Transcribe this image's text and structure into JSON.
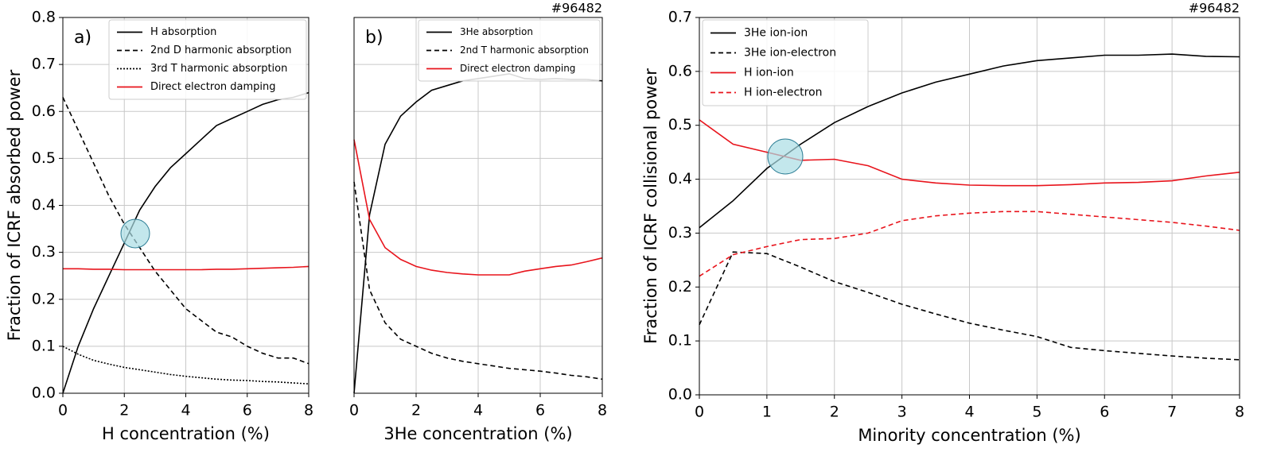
{
  "chart_data": [
    {
      "type": "line",
      "panel_label": "a)",
      "xlabel": "H concentration (%)",
      "ylabel": "Fraction of ICRF absorbed power",
      "xlim": [
        0,
        8
      ],
      "ylim": [
        0,
        0.8
      ],
      "xticks": [
        0,
        2,
        4,
        6,
        8
      ],
      "yticks": [
        {
          "value": 0,
          "label": "0.0"
        },
        0.1,
        0.2,
        0.3,
        0.4,
        0.5,
        0.6,
        0.7,
        0.8
      ],
      "grid": true,
      "legend": "upper right",
      "x": [
        0,
        0.5,
        1,
        1.5,
        2,
        2.5,
        3,
        3.5,
        4,
        4.5,
        5,
        5.5,
        6,
        6.5,
        7,
        7.5,
        8
      ],
      "series": [
        {
          "name": "H absorption",
          "color": "#000000",
          "dash": "solid",
          "values": [
            0,
            0.1,
            0.18,
            0.25,
            0.32,
            0.39,
            0.44,
            0.48,
            0.51,
            0.54,
            0.57,
            0.585,
            0.6,
            0.615,
            0.625,
            0.63,
            0.64
          ]
        },
        {
          "name": "2nd D harmonic absorption",
          "color": "#000000",
          "dash": "dashed",
          "values": [
            0.63,
            0.56,
            0.49,
            0.42,
            0.36,
            0.31,
            0.26,
            0.22,
            0.18,
            0.155,
            0.13,
            0.12,
            0.1,
            0.085,
            0.075,
            0.075,
            0.063
          ]
        },
        {
          "name": "3rd T harmonic absorption",
          "color": "#000000",
          "dash": "dotted",
          "values": [
            0.1,
            0.083,
            0.07,
            0.062,
            0.055,
            0.05,
            0.045,
            0.04,
            0.036,
            0.033,
            0.03,
            0.028,
            0.027,
            0.025,
            0.024,
            0.022,
            0.02
          ]
        },
        {
          "name": "Direct electron damping",
          "color": "#e8141c",
          "dash": "solid",
          "values": [
            0.265,
            0.265,
            0.264,
            0.264,
            0.263,
            0.263,
            0.263,
            0.263,
            0.263,
            0.263,
            0.264,
            0.264,
            0.265,
            0.266,
            0.267,
            0.268,
            0.27
          ]
        }
      ]
    },
    {
      "type": "line",
      "panel_label": "b)",
      "shot_label": "#96482",
      "xlabel": "3He concentration (%)",
      "xlim": [
        0,
        8
      ],
      "ylim": [
        0,
        0.8
      ],
      "xticks": [
        0,
        2,
        4,
        6,
        8
      ],
      "yticks": [
        0.1,
        0.2,
        0.3,
        0.4,
        0.5,
        0.6,
        0.7
      ],
      "ytick_labels": false,
      "grid": true,
      "legend": "upper right",
      "x": [
        0,
        0.5,
        1,
        1.5,
        2,
        2.5,
        3,
        3.5,
        4,
        4.5,
        5,
        5.5,
        6,
        6.5,
        7,
        7.5,
        8
      ],
      "series": [
        {
          "name": "3He absorption",
          "color": "#000000",
          "dash": "solid",
          "values": [
            0,
            0.38,
            0.53,
            0.59,
            0.62,
            0.645,
            0.655,
            0.665,
            0.67,
            0.675,
            0.68,
            0.67,
            0.668,
            0.67,
            0.668,
            0.668,
            0.665
          ]
        },
        {
          "name": "2nd T harmonic absorption",
          "color": "#000000",
          "dash": "dashed",
          "values": [
            0.45,
            0.22,
            0.15,
            0.115,
            0.1,
            0.085,
            0.075,
            0.068,
            0.063,
            0.058,
            0.053,
            0.05,
            0.047,
            0.043,
            0.038,
            0.035,
            0.03
          ]
        },
        {
          "name": "Direct electron damping",
          "color": "#e8141c",
          "dash": "solid",
          "values": [
            0.54,
            0.37,
            0.31,
            0.285,
            0.27,
            0.262,
            0.257,
            0.254,
            0.252,
            0.252,
            0.252,
            0.26,
            0.265,
            0.27,
            0.273,
            0.28,
            0.288
          ]
        }
      ]
    },
    {
      "type": "line",
      "shot_label": "#96482",
      "xlabel": "Minority concentration (%)",
      "ylabel": "Fraction of ICRF collisional power",
      "xlim": [
        0,
        8
      ],
      "ylim": [
        0,
        0.7
      ],
      "xticks": [
        0,
        1,
        2,
        3,
        4,
        5,
        6,
        7,
        8
      ],
      "yticks": [
        {
          "value": 0,
          "label": "0.0"
        },
        0.1,
        0.2,
        0.3,
        0.4,
        0.5,
        0.6,
        0.7
      ],
      "grid": true,
      "legend": "upper left",
      "x": [
        0,
        0.5,
        1,
        1.5,
        2,
        2.5,
        3,
        3.5,
        4,
        4.5,
        5,
        5.5,
        6,
        6.5,
        7,
        7.5,
        8
      ],
      "series": [
        {
          "name": "3He ion-ion",
          "color": "#000000",
          "dash": "solid",
          "values": [
            0.31,
            0.36,
            0.42,
            0.465,
            0.505,
            0.535,
            0.56,
            0.58,
            0.595,
            0.61,
            0.62,
            0.625,
            0.63,
            0.63,
            0.632,
            0.628,
            0.627
          ]
        },
        {
          "name": "3He ion-electron",
          "color": "#000000",
          "dash": "dashed",
          "values": [
            0.13,
            0.265,
            0.262,
            0.237,
            0.21,
            0.19,
            0.168,
            0.15,
            0.133,
            0.12,
            0.108,
            0.088,
            0.082,
            0.077,
            0.072,
            0.068,
            0.065
          ]
        },
        {
          "name": "H ion-ion",
          "color": "#e8141c",
          "dash": "solid",
          "values": [
            0.51,
            0.465,
            0.45,
            0.435,
            0.437,
            0.425,
            0.4,
            0.393,
            0.389,
            0.388,
            0.388,
            0.39,
            0.393,
            0.394,
            0.397,
            0.406,
            0.413
          ]
        },
        {
          "name": "H ion-electron",
          "color": "#e8141c",
          "dash": "dashed",
          "values": [
            0.22,
            0.26,
            0.275,
            0.288,
            0.29,
            0.3,
            0.323,
            0.332,
            0.337,
            0.34,
            0.34,
            0.335,
            0.33,
            0.325,
            0.32,
            0.313,
            0.305
          ]
        }
      ]
    }
  ]
}
